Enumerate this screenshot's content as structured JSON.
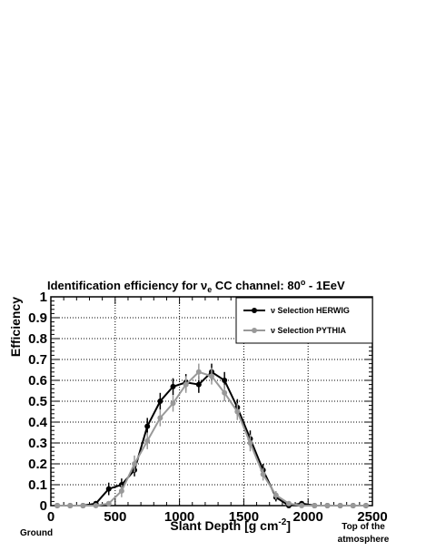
{
  "chart_data": {
    "type": "line",
    "title": {
      "prefix": "Identification efficiency for ",
      "nu": "ν",
      "nu_sub": "e",
      "mid": " CC channel: 80",
      "deg": "o",
      "suffix": " - 1EeV"
    },
    "xlabel": {
      "main": "Slant Depth [g cm",
      "sup": "-2",
      "close": "]"
    },
    "ylabel": "Efficiency",
    "xlim": [
      0,
      2500
    ],
    "ylim": [
      0,
      1
    ],
    "xticks": [
      "0",
      "500",
      "1000",
      "1500",
      "2000",
      "2500"
    ],
    "yticks": [
      "0",
      "0.1",
      "0.2",
      "0.3",
      "0.4",
      "0.5",
      "0.6",
      "0.7",
      "0.8",
      "0.9",
      "1"
    ],
    "grid": true,
    "legend_position": "top-right",
    "x_annotations": {
      "left": "Ground",
      "right_line1": "Top of the",
      "right_line2": "atmosphere"
    },
    "series": [
      {
        "name": "ν Selection HERWIG",
        "color": "#000000",
        "x": [
          50,
          150,
          250,
          350,
          450,
          550,
          650,
          750,
          850,
          950,
          1050,
          1150,
          1250,
          1350,
          1450,
          1550,
          1650,
          1750,
          1850,
          1950,
          2050,
          2150,
          2250,
          2350,
          2450
        ],
        "y": [
          0.0,
          0.0,
          0.0,
          0.01,
          0.08,
          0.1,
          0.17,
          0.38,
          0.5,
          0.57,
          0.59,
          0.58,
          0.64,
          0.6,
          0.47,
          0.32,
          0.17,
          0.04,
          0.0,
          0.01,
          0.0,
          0.0,
          0.0,
          0.0,
          0.0
        ],
        "err": [
          0,
          0,
          0,
          0.01,
          0.03,
          0.03,
          0.03,
          0.04,
          0.04,
          0.04,
          0.04,
          0.04,
          0.04,
          0.04,
          0.04,
          0.04,
          0.03,
          0.02,
          0,
          0.01,
          0,
          0,
          0,
          0,
          0
        ]
      },
      {
        "name": "ν Selection PYTHIA",
        "color": "#999999",
        "x": [
          50,
          150,
          250,
          350,
          450,
          550,
          650,
          750,
          850,
          950,
          1050,
          1150,
          1250,
          1350,
          1450,
          1550,
          1650,
          1750,
          1850,
          1950,
          2050,
          2150,
          2250,
          2350,
          2450
        ],
        "y": [
          0.0,
          0.0,
          0.0,
          0.0,
          0.01,
          0.07,
          0.2,
          0.31,
          0.42,
          0.49,
          0.58,
          0.64,
          0.62,
          0.54,
          0.45,
          0.3,
          0.15,
          0.05,
          0.01,
          0.0,
          0.0,
          0.0,
          0.0,
          0.0,
          0.0
        ],
        "err": [
          0,
          0,
          0,
          0,
          0.01,
          0.03,
          0.04,
          0.04,
          0.04,
          0.04,
          0.04,
          0.04,
          0.04,
          0.04,
          0.04,
          0.04,
          0.03,
          0.02,
          0.01,
          0,
          0,
          0,
          0,
          0,
          0
        ]
      }
    ]
  }
}
